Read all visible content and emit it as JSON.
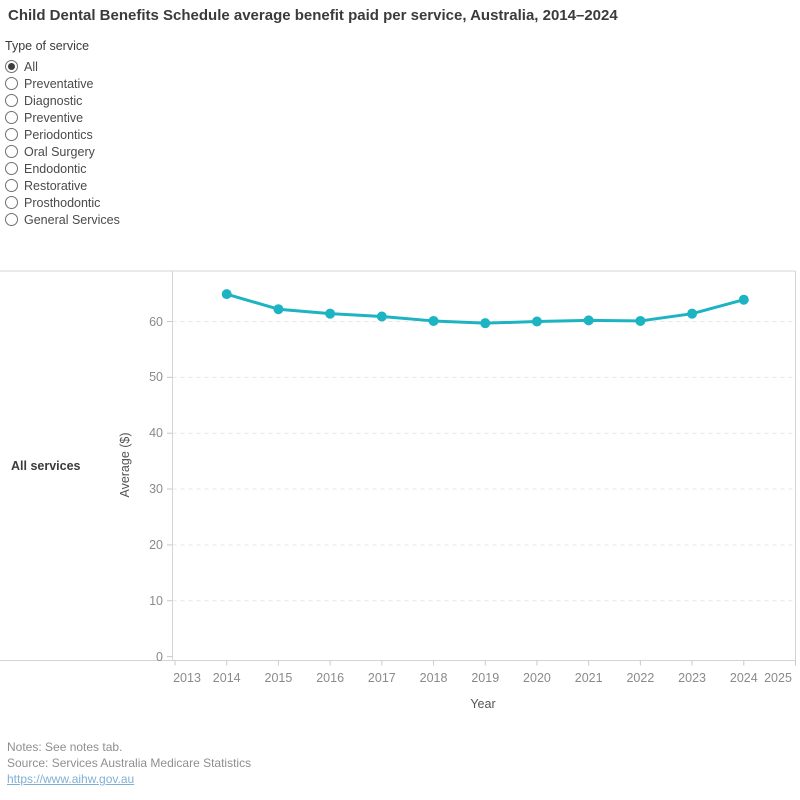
{
  "header": {
    "title": "Child Dental Benefits Schedule average benefit paid per service, Australia, 2014–2024"
  },
  "filter": {
    "label": "Type of service",
    "options": [
      {
        "label": "All",
        "selected": true
      },
      {
        "label": "Preventative",
        "selected": false
      },
      {
        "label": "Diagnostic",
        "selected": false
      },
      {
        "label": "Preventive",
        "selected": false
      },
      {
        "label": "Periodontics",
        "selected": false
      },
      {
        "label": "Oral Surgery",
        "selected": false
      },
      {
        "label": "Endodontic",
        "selected": false
      },
      {
        "label": "Restorative",
        "selected": false
      },
      {
        "label": "Prosthodontic",
        "selected": false
      },
      {
        "label": "General Services",
        "selected": false
      }
    ]
  },
  "chart_data": {
    "type": "line",
    "title": "Child Dental Benefits Schedule average benefit paid per service, Australia, 2014–2024",
    "row_label": "All services",
    "xlabel": "Year",
    "ylabel": "Average ($)",
    "x": [
      2014,
      2015,
      2016,
      2017,
      2018,
      2019,
      2020,
      2021,
      2022,
      2023,
      2024
    ],
    "values": [
      64.9,
      62.2,
      61.4,
      60.9,
      60.1,
      59.7,
      60.0,
      60.2,
      60.1,
      61.4,
      63.9
    ],
    "series_name": "All services",
    "line_color": "#1cb3c3",
    "x_ticks": [
      2013,
      2014,
      2015,
      2016,
      2017,
      2018,
      2019,
      2020,
      2021,
      2022,
      2023,
      2024,
      2025
    ],
    "y_ticks": [
      0,
      10,
      20,
      30,
      40,
      50,
      60
    ],
    "xlim": [
      2013,
      2025
    ],
    "ylim": [
      0,
      69
    ],
    "grid": "horizontal-dashed",
    "legend": "none"
  },
  "footer": {
    "notes": "Notes: See notes tab.",
    "source": "Source: Services Australia Medicare Statistics",
    "link": "https://www.aihw.gov.au"
  }
}
